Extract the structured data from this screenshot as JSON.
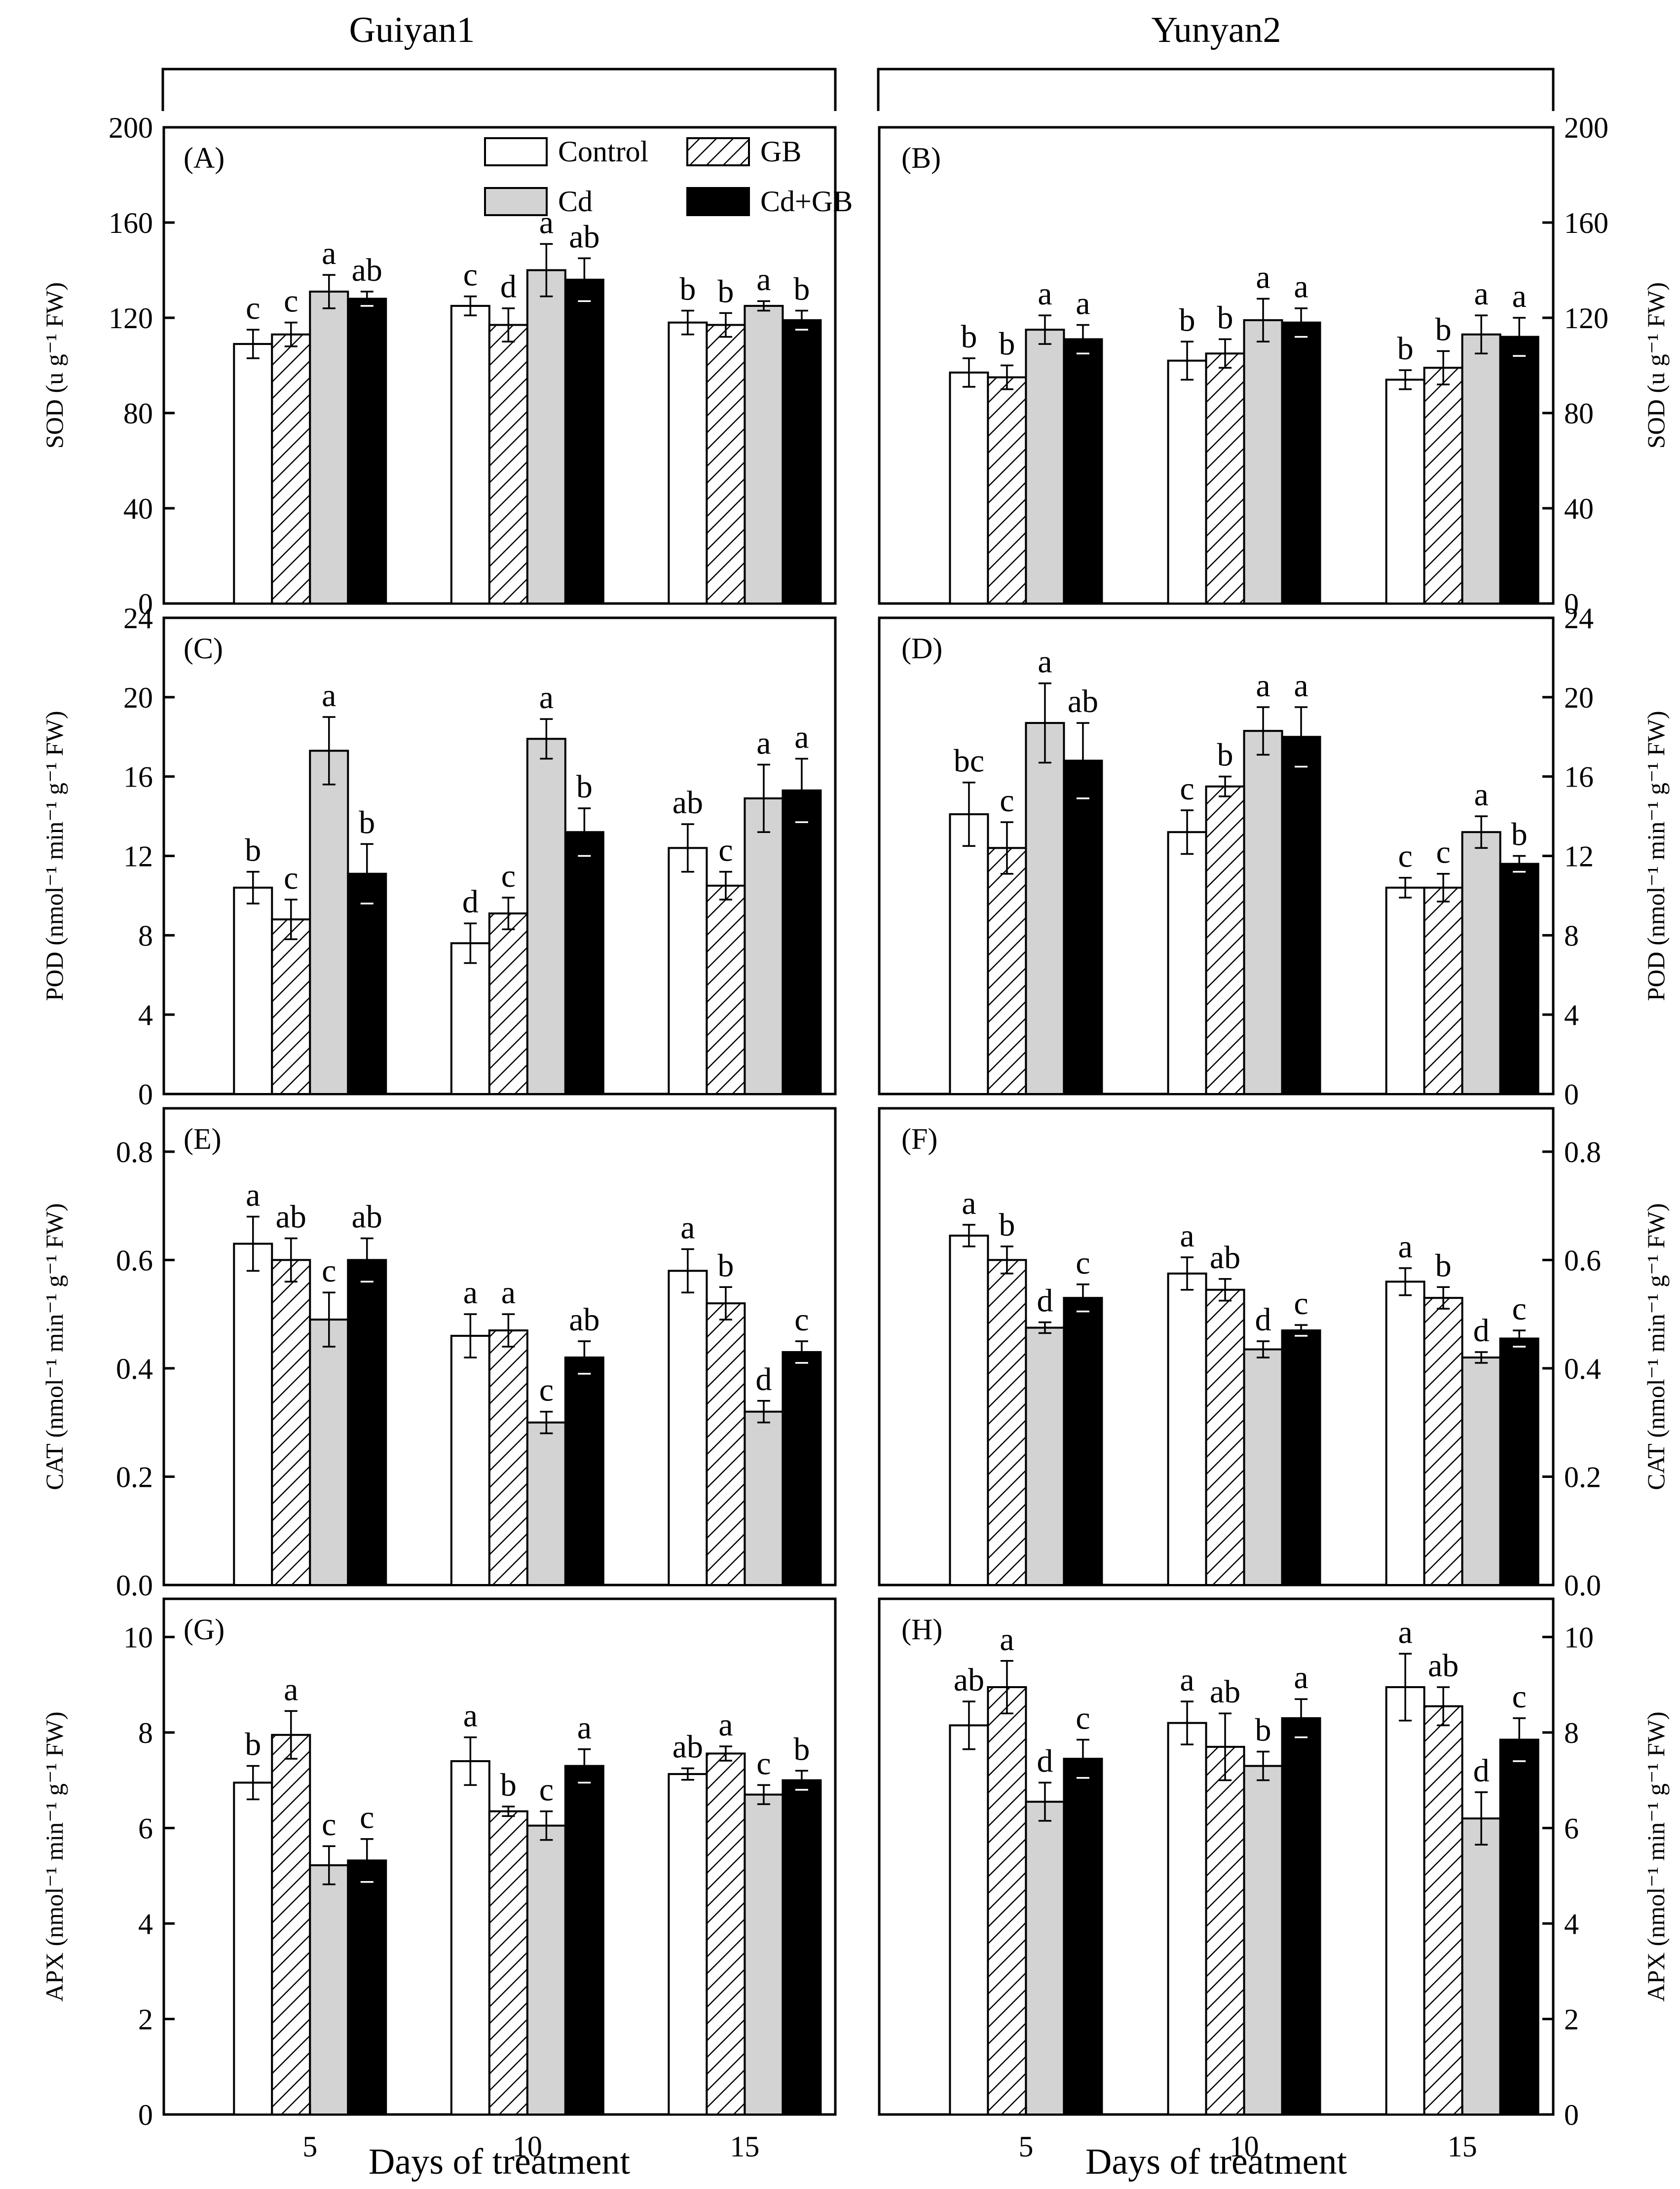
{
  "cultivars": [
    "Guiyan1",
    "Yunyan2"
  ],
  "legend": [
    {
      "label": "Control",
      "fill": "white"
    },
    {
      "label": "GB",
      "fill": "hatch"
    },
    {
      "label": "Cd",
      "fill": "gray"
    },
    {
      "label": "Cd+GB",
      "fill": "black"
    }
  ],
  "xlabel": "Days of treatment",
  "colors": {
    "control": "#ffffff",
    "cd": "#d3d3d3",
    "cdgb": "#000000",
    "axis": "#000000"
  },
  "chart_data": [
    {
      "type": "bar",
      "panel": "(A)",
      "cultivar": "Guiyan1",
      "side": "left",
      "ylabel": "SOD (u g⁻¹ FW)",
      "ylim": [
        0,
        200
      ],
      "yticks": [
        "0",
        "40",
        "80",
        "120",
        "160",
        "200"
      ],
      "categories": [
        "5",
        "10",
        "15"
      ],
      "show_categories": false,
      "series": [
        {
          "name": "Control",
          "values": [
            109,
            125,
            118
          ],
          "err": [
            6,
            4,
            5
          ],
          "labels": [
            "c",
            "c",
            "b"
          ]
        },
        {
          "name": "GB",
          "values": [
            113,
            117,
            117
          ],
          "err": [
            5,
            7,
            5
          ],
          "labels": [
            "c",
            "d",
            "b"
          ]
        },
        {
          "name": "Cd",
          "values": [
            131,
            140,
            125
          ],
          "err": [
            7,
            11,
            2
          ],
          "labels": [
            "a",
            "a",
            "a"
          ]
        },
        {
          "name": "Cd+GB",
          "values": [
            128,
            136,
            119
          ],
          "err": [
            3,
            9,
            4
          ],
          "labels": [
            "ab",
            "ab",
            "b"
          ]
        }
      ]
    },
    {
      "type": "bar",
      "panel": "(B)",
      "cultivar": "Yunyan2",
      "side": "right",
      "ylabel": "SOD (u g⁻¹ FW)",
      "ylim": [
        0,
        200
      ],
      "yticks": [
        "0",
        "40",
        "80",
        "120",
        "160",
        "200"
      ],
      "categories": [
        "5",
        "10",
        "15"
      ],
      "show_categories": false,
      "series": [
        {
          "name": "Control",
          "values": [
            97,
            102,
            94
          ],
          "err": [
            6,
            8,
            4
          ],
          "labels": [
            "b",
            "b",
            "b"
          ]
        },
        {
          "name": "GB",
          "values": [
            95,
            105,
            99
          ],
          "err": [
            5,
            6,
            7
          ],
          "labels": [
            "b",
            "b",
            "b"
          ]
        },
        {
          "name": "Cd",
          "values": [
            115,
            119,
            113
          ],
          "err": [
            6,
            9,
            8
          ],
          "labels": [
            "a",
            "a",
            "a"
          ]
        },
        {
          "name": "Cd+GB",
          "values": [
            111,
            118,
            112
          ],
          "err": [
            6,
            6,
            8
          ],
          "labels": [
            "a",
            "a",
            "a"
          ]
        }
      ]
    },
    {
      "type": "bar",
      "panel": "(C)",
      "cultivar": "Guiyan1",
      "side": "left",
      "ylabel": "POD (nmol⁻¹ min⁻¹ g⁻¹ FW)",
      "ylim": [
        0,
        24
      ],
      "yticks": [
        "0",
        "4",
        "8",
        "12",
        "16",
        "20",
        "24"
      ],
      "categories": [
        "5",
        "10",
        "15"
      ],
      "show_categories": false,
      "series": [
        {
          "name": "Control",
          "values": [
            10.4,
            7.6,
            12.4
          ],
          "err": [
            0.8,
            1.0,
            1.2
          ],
          "labels": [
            "b",
            "d",
            "ab"
          ]
        },
        {
          "name": "GB",
          "values": [
            8.8,
            9.1,
            10.5
          ],
          "err": [
            1.0,
            0.8,
            0.7
          ],
          "labels": [
            "c",
            "c",
            "c"
          ]
        },
        {
          "name": "Cd",
          "values": [
            17.3,
            17.9,
            14.9
          ],
          "err": [
            1.7,
            1.0,
            1.7
          ],
          "labels": [
            "a",
            "a",
            "a"
          ]
        },
        {
          "name": "Cd+GB",
          "values": [
            11.1,
            13.2,
            15.3
          ],
          "err": [
            1.5,
            1.2,
            1.6
          ],
          "labels": [
            "b",
            "b",
            "a"
          ]
        }
      ]
    },
    {
      "type": "bar",
      "panel": "(D)",
      "cultivar": "Yunyan2",
      "side": "right",
      "ylabel": "POD (nmol⁻¹ min⁻¹ g⁻¹ FW)",
      "ylim": [
        0,
        24
      ],
      "yticks": [
        "0",
        "4",
        "8",
        "12",
        "16",
        "20",
        "24"
      ],
      "categories": [
        "5",
        "10",
        "15"
      ],
      "show_categories": false,
      "series": [
        {
          "name": "Control",
          "values": [
            14.1,
            13.2,
            10.4
          ],
          "err": [
            1.6,
            1.1,
            0.5
          ],
          "labels": [
            "bc",
            "c",
            "c"
          ]
        },
        {
          "name": "GB",
          "values": [
            12.4,
            15.5,
            10.4
          ],
          "err": [
            1.3,
            0.5,
            0.7
          ],
          "labels": [
            "c",
            "b",
            "c"
          ]
        },
        {
          "name": "Cd",
          "values": [
            18.7,
            18.3,
            13.2
          ],
          "err": [
            2.0,
            1.2,
            0.8
          ],
          "labels": [
            "a",
            "a",
            "a"
          ]
        },
        {
          "name": "Cd+GB",
          "values": [
            16.8,
            18.0,
            11.6
          ],
          "err": [
            1.9,
            1.5,
            0.4
          ],
          "labels": [
            "ab",
            "a",
            "b"
          ]
        }
      ]
    },
    {
      "type": "bar",
      "panel": "(E)",
      "cultivar": "Guiyan1",
      "side": "left",
      "ylabel": "CAT (nmol⁻¹ min⁻¹ g⁻¹ FW)",
      "ylim": [
        0,
        0.88
      ],
      "yticks": [
        "0.0",
        "0.2",
        "0.4",
        "0.6",
        "0.8"
      ],
      "categories": [
        "5",
        "10",
        "15"
      ],
      "show_categories": false,
      "series": [
        {
          "name": "Control",
          "values": [
            0.63,
            0.46,
            0.58
          ],
          "err": [
            0.05,
            0.04,
            0.04
          ],
          "labels": [
            "a",
            "a",
            "a"
          ]
        },
        {
          "name": "GB",
          "values": [
            0.6,
            0.47,
            0.52
          ],
          "err": [
            0.04,
            0.03,
            0.03
          ],
          "labels": [
            "ab",
            "a",
            "b"
          ]
        },
        {
          "name": "Cd",
          "values": [
            0.49,
            0.3,
            0.32
          ],
          "err": [
            0.05,
            0.02,
            0.02
          ],
          "labels": [
            "c",
            "c",
            "d"
          ]
        },
        {
          "name": "Cd+GB",
          "values": [
            0.6,
            0.42,
            0.43
          ],
          "err": [
            0.04,
            0.03,
            0.02
          ],
          "labels": [
            "ab",
            "ab",
            "c"
          ]
        }
      ]
    },
    {
      "type": "bar",
      "panel": "(F)",
      "cultivar": "Yunyan2",
      "side": "right",
      "ylabel": "CAT (nmol⁻¹ min⁻¹ g⁻¹ FW)",
      "ylim": [
        0,
        0.88
      ],
      "yticks": [
        "0.0",
        "0.2",
        "0.4",
        "0.6",
        "0.8"
      ],
      "categories": [
        "5",
        "10",
        "15"
      ],
      "show_categories": false,
      "series": [
        {
          "name": "Control",
          "values": [
            0.645,
            0.575,
            0.56
          ],
          "err": [
            0.02,
            0.03,
            0.025
          ],
          "labels": [
            "a",
            "a",
            "a"
          ]
        },
        {
          "name": "GB",
          "values": [
            0.6,
            0.545,
            0.53
          ],
          "err": [
            0.025,
            0.02,
            0.02
          ],
          "labels": [
            "b",
            "ab",
            "b"
          ]
        },
        {
          "name": "Cd",
          "values": [
            0.475,
            0.435,
            0.42
          ],
          "err": [
            0.01,
            0.015,
            0.01
          ],
          "labels": [
            "d",
            "d",
            "d"
          ]
        },
        {
          "name": "Cd+GB",
          "values": [
            0.53,
            0.47,
            0.455
          ],
          "err": [
            0.025,
            0.01,
            0.015
          ],
          "labels": [
            "c",
            "c",
            "c"
          ]
        }
      ]
    },
    {
      "type": "bar",
      "panel": "(G)",
      "cultivar": "Guiyan1",
      "side": "left",
      "ylabel": "APX (nmol⁻¹ min⁻¹ g⁻¹ FW)",
      "ylim": [
        0,
        10.8
      ],
      "yticks": [
        "0",
        "2",
        "4",
        "6",
        "8",
        "10"
      ],
      "categories": [
        "5",
        "10",
        "15"
      ],
      "show_categories": true,
      "series": [
        {
          "name": "Control",
          "values": [
            6.95,
            7.4,
            7.13
          ],
          "err": [
            0.35,
            0.5,
            0.12
          ],
          "labels": [
            "b",
            "a",
            "ab"
          ]
        },
        {
          "name": "GB",
          "values": [
            7.95,
            6.35,
            7.56
          ],
          "err": [
            0.5,
            0.1,
            0.15
          ],
          "labels": [
            "a",
            "b",
            "a"
          ]
        },
        {
          "name": "Cd",
          "values": [
            5.22,
            6.05,
            6.7
          ],
          "err": [
            0.4,
            0.3,
            0.2
          ],
          "labels": [
            "c",
            "c",
            "c"
          ]
        },
        {
          "name": "Cd+GB",
          "values": [
            5.32,
            7.3,
            7.0
          ],
          "err": [
            0.45,
            0.35,
            0.2
          ],
          "labels": [
            "c",
            "a",
            "b"
          ]
        }
      ]
    },
    {
      "type": "bar",
      "panel": "(H)",
      "cultivar": "Yunyan2",
      "side": "right",
      "ylabel": "APX (nmol⁻¹ min⁻¹ g⁻¹ FW)",
      "ylim": [
        0,
        10.8
      ],
      "yticks": [
        "0",
        "2",
        "4",
        "6",
        "8",
        "10"
      ],
      "categories": [
        "5",
        "10",
        "15"
      ],
      "show_categories": true,
      "series": [
        {
          "name": "Control",
          "values": [
            8.15,
            8.2,
            8.95
          ],
          "err": [
            0.5,
            0.45,
            0.7
          ],
          "labels": [
            "ab",
            "a",
            "a"
          ]
        },
        {
          "name": "GB",
          "values": [
            8.95,
            7.7,
            8.55
          ],
          "err": [
            0.55,
            0.7,
            0.4
          ],
          "labels": [
            "a",
            "ab",
            "ab"
          ]
        },
        {
          "name": "Cd",
          "values": [
            6.55,
            7.3,
            6.2
          ],
          "err": [
            0.4,
            0.3,
            0.55
          ],
          "labels": [
            "d",
            "b",
            "d"
          ]
        },
        {
          "name": "Cd+GB",
          "values": [
            7.45,
            8.3,
            7.85
          ],
          "err": [
            0.4,
            0.4,
            0.45
          ],
          "labels": [
            "c",
            "a",
            "c"
          ]
        }
      ]
    }
  ]
}
